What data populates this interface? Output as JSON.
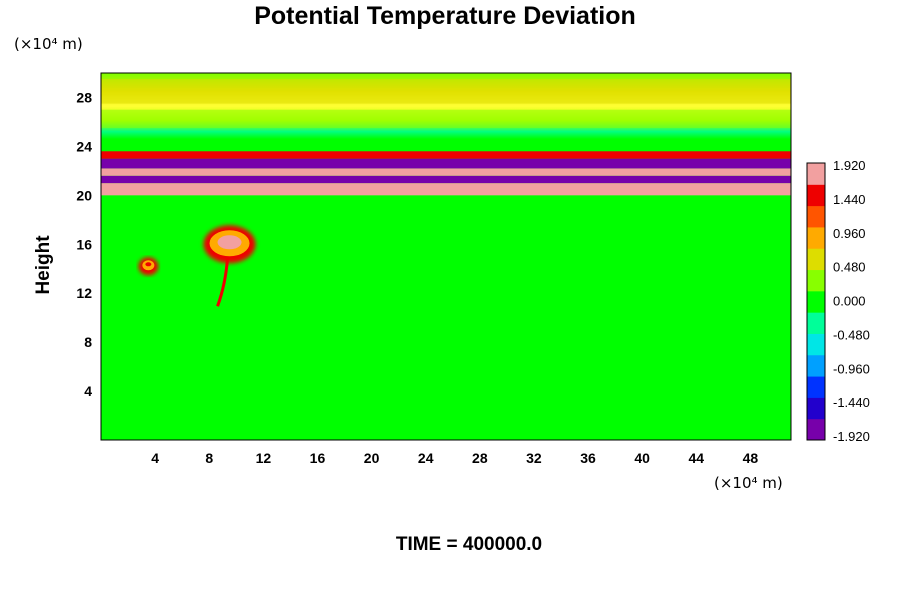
{
  "chart_data": {
    "type": "heatmap",
    "title": "Potential Temperature Deviation",
    "ylabel": "Height",
    "y_unit": "(×10⁴ m)",
    "x_unit": "(×10⁴ m)",
    "x_ticks": [
      4,
      8,
      12,
      16,
      20,
      24,
      28,
      32,
      36,
      40,
      44,
      48
    ],
    "y_ticks": [
      4,
      8,
      12,
      16,
      20,
      24,
      28
    ],
    "xlim": [
      0,
      51
    ],
    "ylim": [
      0,
      30
    ],
    "colorbar": {
      "labels": [
        "1.920",
        "1.440",
        "0.960",
        "0.480",
        "0.000",
        "-0.480",
        "-0.960",
        "-1.440",
        "-1.920"
      ],
      "range": [
        -2.0,
        2.0
      ],
      "colors": [
        "#7700aa",
        "#2200cc",
        "#0033ff",
        "#00a0ff",
        "#00e6e6",
        "#00ff99",
        "#00ff00",
        "#88ff00",
        "#dddd00",
        "#ffaa00",
        "#ff5500",
        "#ee0000",
        "#f2a0a0"
      ]
    },
    "features": [
      {
        "kind": "band",
        "x": [
          0,
          51
        ],
        "y": [
          20.0,
          21.0
        ],
        "value": 1.95
      },
      {
        "kind": "band",
        "x": [
          0,
          51
        ],
        "y": [
          21.0,
          21.6
        ],
        "value": -1.95
      },
      {
        "kind": "band",
        "x": [
          0,
          51
        ],
        "y": [
          21.6,
          22.2
        ],
        "value": 1.95
      },
      {
        "kind": "band",
        "x": [
          0,
          51
        ],
        "y": [
          22.2,
          23.0
        ],
        "value": -1.95
      },
      {
        "kind": "band",
        "x": [
          0,
          51
        ],
        "y": [
          23.0,
          23.6
        ],
        "value": 1.5
      },
      {
        "kind": "band",
        "x": [
          0,
          51
        ],
        "y": [
          25.5,
          27.0
        ],
        "value": 0.3
      },
      {
        "kind": "band",
        "x": [
          0,
          51
        ],
        "y": [
          27.5,
          29.5
        ],
        "value": 0.6
      },
      {
        "kind": "thermal",
        "x": 9.5,
        "y": 16.0,
        "value": 1.9
      },
      {
        "kind": "thermal",
        "x": 3.5,
        "y": 14.2,
        "value": 1.6
      }
    ],
    "background_value": 0.0
  },
  "footer": {
    "time_label": "TIME = 400000.0"
  }
}
